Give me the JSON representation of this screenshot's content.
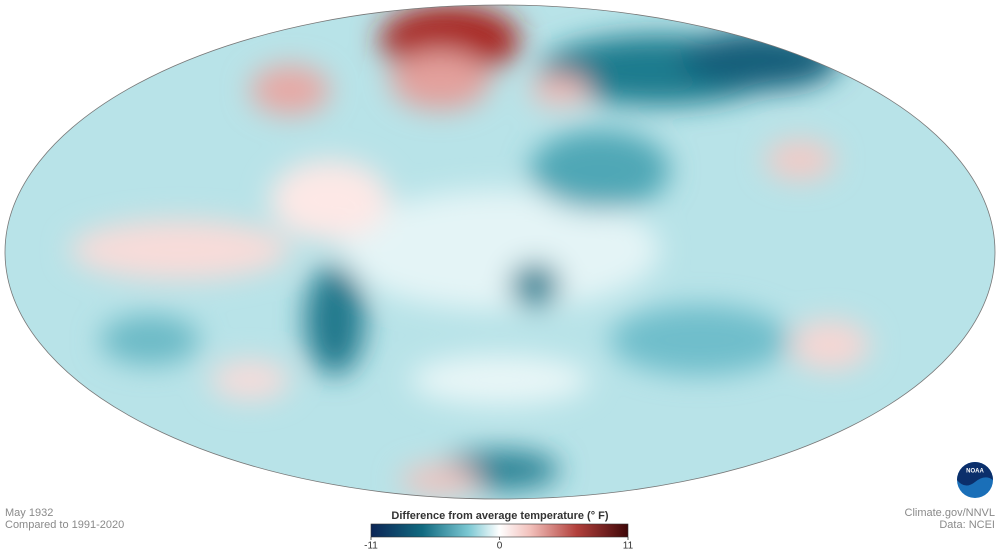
{
  "info": {
    "date": "May 1932",
    "baseline": "Compared to 1991-2020",
    "credit": "Climate.gov/NNVL",
    "source": "Data: NCEI",
    "logo": "NOAA"
  },
  "legend": {
    "title": "Difference from average temperature (° F)",
    "ticks": [
      -11,
      0,
      11
    ]
  }
}
